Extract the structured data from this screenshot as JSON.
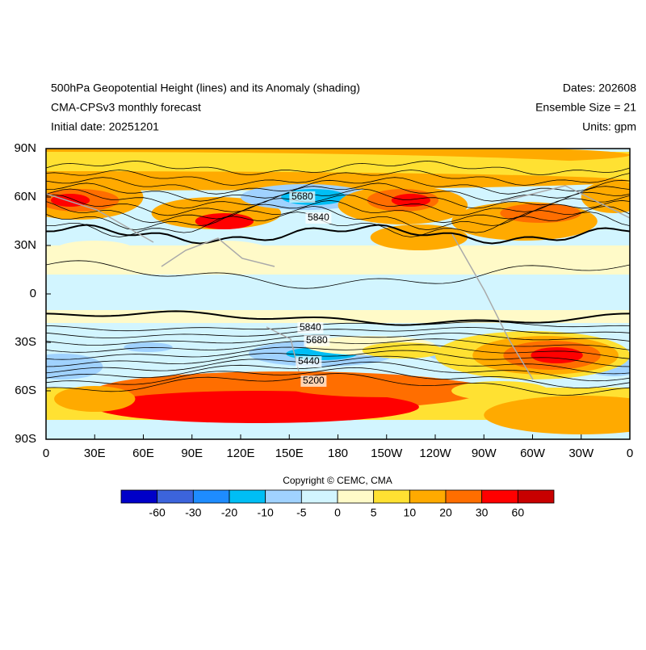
{
  "header": {
    "title": "500hPa Geopotential Height (lines) and its Anomaly (shading)",
    "subtitle": "CMA-CPSv3 monthly forecast",
    "initial_date": "Initial date: 20251201",
    "dates": "Dates: 202608",
    "ensemble": "Ensemble Size = 21",
    "units": "Units: gpm"
  },
  "map": {
    "lat_labels": [
      "90N",
      "60N",
      "30N",
      "0",
      "30S",
      "60S",
      "90S"
    ],
    "lon_labels": [
      "0",
      "30E",
      "60E",
      "90E",
      "120E",
      "150E",
      "180",
      "150W",
      "120W",
      "90W",
      "60W",
      "30W",
      "0"
    ],
    "contour_labels": [
      "5680",
      "5840",
      "5840",
      "5680",
      "5440",
      "5200"
    ]
  },
  "colorbar": {
    "labels": [
      -60,
      -30,
      -20,
      -10,
      -5,
      0,
      5,
      10,
      20,
      30,
      60
    ],
    "colors": [
      "#0000c8",
      "#3c64dc",
      "#1e8cff",
      "#00bef5",
      "#a0d2ff",
      "#d2f5ff",
      "#fffac8",
      "#ffe132",
      "#ffaa00",
      "#ff6e00",
      "#ff0000",
      "#c80000"
    ]
  },
  "copyright": "Copyright © CEMC, CMA"
}
